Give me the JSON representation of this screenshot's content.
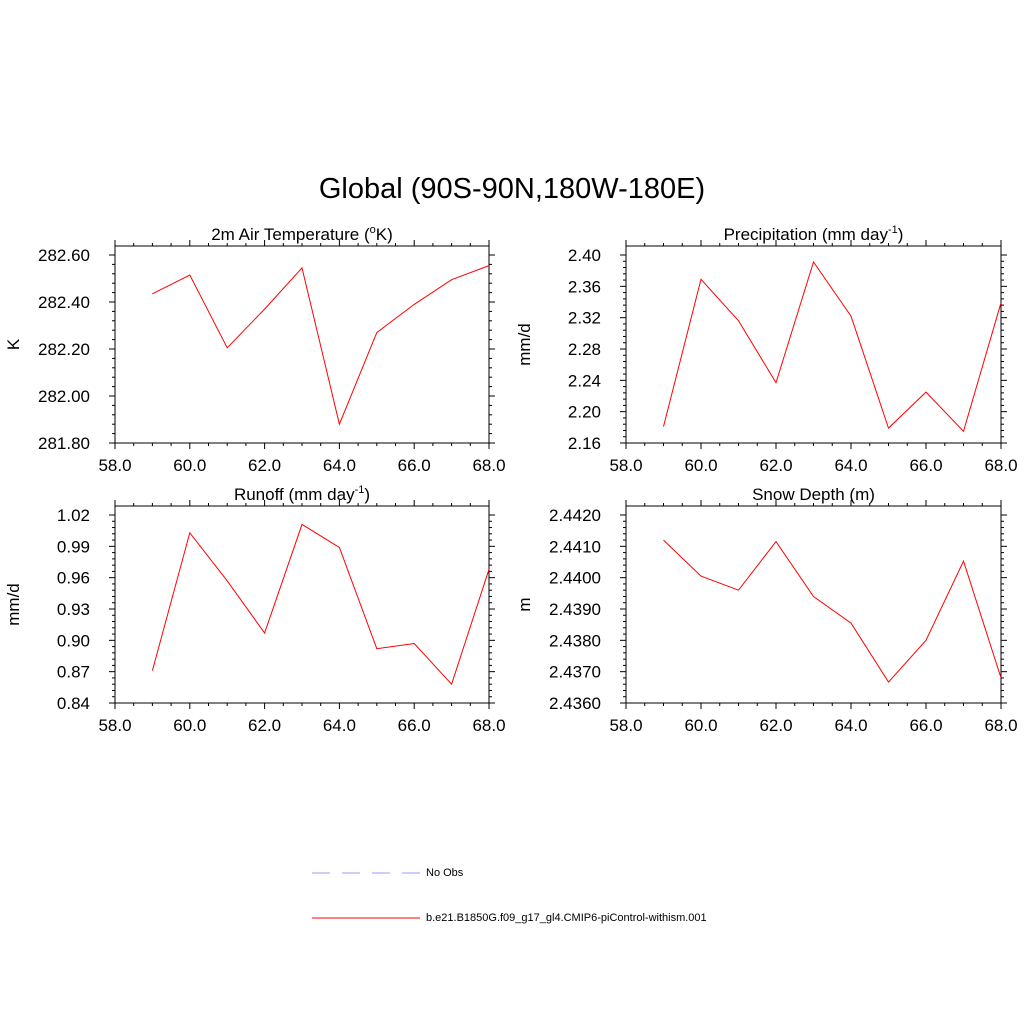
{
  "title": "Global (90S-90N,180W-180E)",
  "colors": {
    "series": "#ff0000",
    "obs": "#9999ff",
    "axis": "#000000"
  },
  "legend": {
    "entries": [
      {
        "label": "No Obs",
        "style": "dashed",
        "color": "#9999ff"
      },
      {
        "label": "b.e21.B1850G.f09_g17_gl4.CMIP6-piControl-withism.001",
        "style": "solid",
        "color": "#ff0000"
      }
    ]
  },
  "chart_data": [
    {
      "type": "line",
      "title": "2m Air Temperature (°K)",
      "title_parts": {
        "pre": "2m Air Temperature (",
        "sup": "o",
        "post": "K)"
      },
      "ylabel": "K",
      "xlim": [
        58,
        68
      ],
      "ylim": [
        281.8,
        282.6
      ],
      "xticks": [
        58,
        60,
        62,
        64,
        66,
        68
      ],
      "yticks": [
        281.8,
        282.0,
        282.2,
        282.4,
        282.6
      ],
      "ydecimals": 2,
      "x": [
        59,
        60,
        61,
        62,
        63,
        64,
        65,
        66,
        67,
        68
      ],
      "series": [
        {
          "name": "b.e21.B1850G.f09_g17_gl4.CMIP6-piControl-withism.001",
          "values": [
            282.435,
            282.515,
            282.205,
            282.37,
            282.545,
            281.88,
            282.27,
            282.39,
            282.495,
            282.555
          ]
        }
      ]
    },
    {
      "type": "line",
      "title": "Precipitation (mm day-1)",
      "title_parts": {
        "pre": "Precipitation (mm day",
        "sup": "-1",
        "post": ")"
      },
      "ylabel": "mm/d",
      "xlim": [
        58,
        68
      ],
      "ylim": [
        2.16,
        2.4
      ],
      "xticks": [
        58,
        60,
        62,
        64,
        66,
        68
      ],
      "yticks": [
        2.16,
        2.2,
        2.24,
        2.28,
        2.32,
        2.36,
        2.4
      ],
      "ydecimals": 2,
      "x": [
        59,
        60,
        61,
        62,
        63,
        64,
        65,
        66,
        67,
        68
      ],
      "series": [
        {
          "name": "b.e21.B1850G.f09_g17_gl4.CMIP6-piControl-withism.001",
          "values": [
            2.181,
            2.369,
            2.316,
            2.237,
            2.391,
            2.322,
            2.179,
            2.225,
            2.175,
            2.339
          ]
        }
      ]
    },
    {
      "type": "line",
      "title": "Runoff (mm day-1)",
      "title_parts": {
        "pre": "Runoff (mm day",
        "sup": "-1",
        "post": ")"
      },
      "ylabel": "mm/d",
      "xlim": [
        58,
        68
      ],
      "ylim": [
        0.84,
        1.02
      ],
      "xticks": [
        58,
        60,
        62,
        64,
        66,
        68
      ],
      "yticks": [
        0.84,
        0.87,
        0.9,
        0.93,
        0.96,
        0.99,
        1.02
      ],
      "ydecimals": 2,
      "x": [
        59,
        60,
        61,
        62,
        63,
        64,
        65,
        66,
        67,
        68
      ],
      "series": [
        {
          "name": "b.e21.B1850G.f09_g17_gl4.CMIP6-piControl-withism.001",
          "values": [
            0.871,
            1.003,
            0.957,
            0.907,
            1.011,
            0.989,
            0.892,
            0.897,
            0.858,
            0.968
          ]
        }
      ]
    },
    {
      "type": "line",
      "title": "Snow Depth (m)",
      "title_parts": {
        "pre": "Snow Depth (m)",
        "sup": "",
        "post": ""
      },
      "ylabel": "m",
      "xlim": [
        58,
        68
      ],
      "ylim": [
        2.436,
        2.442
      ],
      "xticks": [
        58,
        60,
        62,
        64,
        66,
        68
      ],
      "yticks": [
        2.436,
        2.437,
        2.438,
        2.439,
        2.44,
        2.441,
        2.442
      ],
      "ydecimals": 4,
      "x": [
        59,
        60,
        61,
        62,
        63,
        64,
        65,
        66,
        67,
        68
      ],
      "series": [
        {
          "name": "b.e21.B1850G.f09_g17_gl4.CMIP6-piControl-withism.001",
          "values": [
            2.4412,
            2.44005,
            2.4396,
            2.44115,
            2.4394,
            2.43855,
            2.43667,
            2.438,
            2.44053,
            2.4368
          ]
        }
      ]
    }
  ]
}
